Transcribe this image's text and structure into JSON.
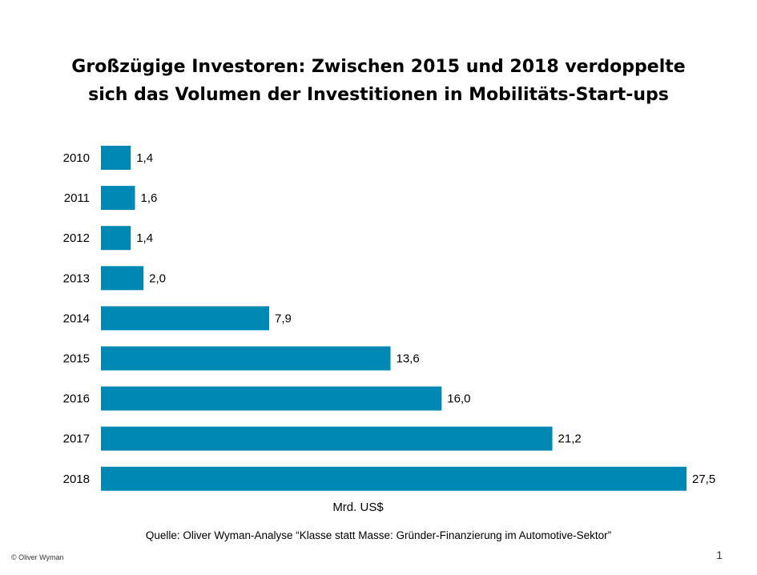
{
  "slide": {
    "title_line1": "Großzügige Investoren: Zwischen 2015 und 2018 verdoppelte",
    "title_line2": "sich das Volumen der Investitionen in Mobilitäts-Start-ups",
    "source": "Quelle: Oliver Wyman-Analyse “Klasse statt Masse: Gründer-Finanzierung  im Automotive-Sektor”",
    "copyright": "© Oliver Wyman",
    "page_number": "1"
  },
  "chart_data": {
    "type": "bar",
    "orientation": "horizontal",
    "categories": [
      "2010",
      "2011",
      "2012",
      "2013",
      "2014",
      "2015",
      "2016",
      "2017",
      "2018"
    ],
    "values": [
      1.4,
      1.6,
      1.4,
      2.0,
      7.9,
      13.6,
      16.0,
      21.2,
      27.5
    ],
    "value_labels": [
      "1,4",
      "1,6",
      "1,4",
      "2,0",
      "7,9",
      "13,6",
      "16,0",
      "21,2",
      "27,5"
    ],
    "xlabel": "Mrd. US$",
    "ylabel": "",
    "xlim": [
      0,
      27.5
    ],
    "grid": false,
    "legend": "none",
    "bar_color": "#0088b4"
  }
}
